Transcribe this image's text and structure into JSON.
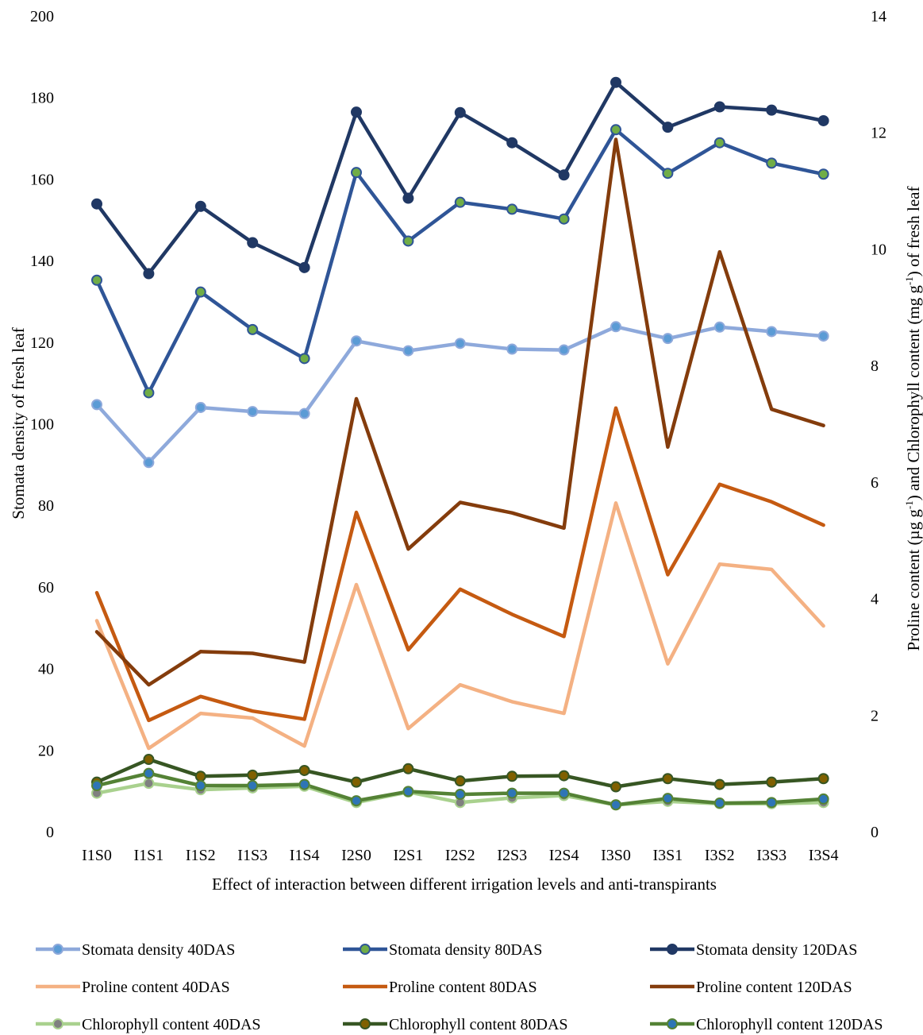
{
  "chart_data": {
    "type": "line",
    "xlabel": "Effect of interaction between different irrigation levels and anti-transpirants",
    "ylabel_left": "Stomata density of fresh leaf",
    "ylabel_right_parts": [
      "Proline content (µg g",
      "-1",
      ") and Chlorophyll content (mg g",
      "-1",
      ") of fresh leaf"
    ],
    "ylim_left": [
      0,
      200
    ],
    "ylim_right": [
      0,
      14
    ],
    "yticks_left": [
      0,
      20,
      40,
      60,
      80,
      100,
      120,
      140,
      160,
      180,
      200
    ],
    "yticks_right": [
      0,
      2,
      4,
      6,
      8,
      10,
      12,
      14
    ],
    "grid": false,
    "legend_position": "bottom",
    "categories": [
      "I1S0",
      "I1S1",
      "I1S2",
      "I1S3",
      "I1S4",
      "I2S0",
      "I2S1",
      "I2S2",
      "I2S3",
      "I2S4",
      "I3S0",
      "I3S1",
      "I3S2",
      "I3S3",
      "I3S4"
    ],
    "series": [
      {
        "name": "Stomata density 40DAS",
        "axis": "left",
        "color": "#8EA9DB",
        "marker": true,
        "marker_fill": "#5B9BD5",
        "values": [
          104.7,
          90.5,
          104.0,
          103.0,
          102.5,
          120.3,
          117.9,
          119.7,
          118.3,
          118.1,
          123.8,
          120.9,
          123.7,
          122.6,
          121.5
        ]
      },
      {
        "name": "Stomata density 80DAS",
        "axis": "left",
        "color": "#2F5597",
        "marker": true,
        "marker_fill": "#70AD47",
        "values": [
          135.2,
          107.6,
          132.3,
          123.1,
          116.0,
          161.6,
          144.8,
          154.3,
          152.6,
          150.2,
          172.1,
          161.4,
          168.9,
          163.9,
          161.2
        ]
      },
      {
        "name": "Stomata density 120DAS",
        "axis": "left",
        "color": "#203864",
        "marker": true,
        "marker_fill": "#203864",
        "values": [
          153.9,
          136.8,
          153.3,
          144.4,
          138.3,
          176.4,
          155.3,
          176.3,
          168.9,
          161.0,
          183.7,
          172.7,
          177.7,
          176.9,
          174.3
        ]
      },
      {
        "name": "Proline content 40DAS",
        "axis": "right",
        "color": "#F4B183",
        "marker": false,
        "values": [
          3.62,
          1.43,
          2.03,
          1.95,
          1.47,
          4.24,
          1.77,
          2.52,
          2.23,
          2.03,
          5.64,
          2.88,
          4.59,
          4.5,
          3.53
        ]
      },
      {
        "name": "Proline content 80DAS",
        "axis": "right",
        "color": "#C55A11",
        "marker": false,
        "values": [
          4.1,
          1.91,
          2.32,
          2.07,
          1.93,
          5.48,
          3.12,
          4.16,
          3.73,
          3.35,
          7.27,
          4.41,
          5.96,
          5.66,
          5.26
        ]
      },
      {
        "name": "Proline content 120DAS",
        "axis": "right",
        "color": "#843C0C",
        "marker": false,
        "values": [
          3.43,
          2.52,
          3.09,
          3.06,
          2.91,
          7.43,
          4.85,
          5.65,
          5.47,
          5.21,
          11.88,
          6.6,
          9.95,
          7.25,
          6.97
        ]
      },
      {
        "name": "Chlorophyll content 40DAS",
        "axis": "right",
        "color": "#A9D18E",
        "marker": true,
        "marker_fill": "#808080",
        "values": [
          0.66,
          0.83,
          0.72,
          0.75,
          0.78,
          0.5,
          0.68,
          0.5,
          0.58,
          0.62,
          0.46,
          0.52,
          0.48,
          0.48,
          0.5
        ]
      },
      {
        "name": "Chlorophyll content 80DAS",
        "axis": "right",
        "color": "#375623",
        "marker": true,
        "marker_fill": "#806000",
        "values": [
          0.85,
          1.24,
          0.95,
          0.97,
          1.05,
          0.85,
          1.08,
          0.87,
          0.95,
          0.96,
          0.77,
          0.91,
          0.81,
          0.85,
          0.91
        ]
      },
      {
        "name": "Chlorophyll content 120DAS",
        "axis": "right",
        "color": "#548235",
        "marker": true,
        "marker_fill": "#2E75B6",
        "values": [
          0.79,
          1.0,
          0.79,
          0.79,
          0.81,
          0.53,
          0.69,
          0.64,
          0.66,
          0.66,
          0.46,
          0.57,
          0.49,
          0.5,
          0.56
        ]
      }
    ]
  }
}
